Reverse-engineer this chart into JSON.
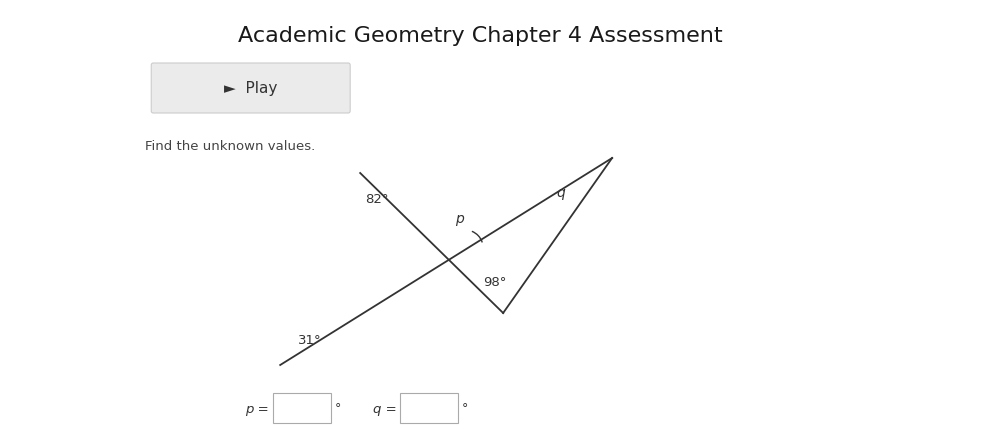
{
  "title": "Academic Geometry Chapter 4 Assessment",
  "title_fontsize": 16,
  "play_button_text": "►  Play",
  "instruction_text": "Find the unknown values.",
  "bg_color": "#ffffff",
  "sidebar_color": "#f2f2f2",
  "angle_82_label": "82°",
  "angle_31_label": "31°",
  "angle_p_label": "p",
  "angle_98_label": "98°",
  "angle_q_label": "q",
  "line_color": "#333333",
  "text_color": "#333333"
}
